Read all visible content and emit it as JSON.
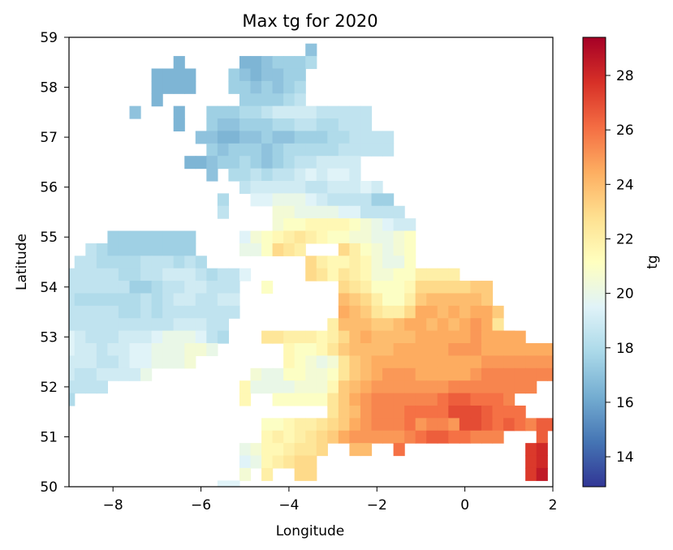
{
  "chart_data": {
    "type": "heatmap",
    "title": "Max tg for 2020",
    "xlabel": "Longitude",
    "ylabel": "Latitude",
    "xlim": [
      -9,
      2
    ],
    "ylim": [
      50,
      59
    ],
    "xticks": [
      -8,
      -6,
      -4,
      -2,
      0,
      2
    ],
    "xtick_labels": [
      "−8",
      "−6",
      "−4",
      "−2",
      "0",
      "2"
    ],
    "yticks": [
      50,
      51,
      52,
      53,
      54,
      55,
      56,
      57,
      58,
      59
    ],
    "ytick_labels": [
      "50",
      "51",
      "52",
      "53",
      "54",
      "55",
      "56",
      "57",
      "58",
      "59"
    ],
    "grid": false,
    "cell_size_deg": [
      0.25,
      0.25
    ],
    "colorbar": {
      "label": "tg",
      "colormap": "RdYlBu_r",
      "vmin": 12.9,
      "vmax": 29.4,
      "ticks": [
        14,
        16,
        18,
        20,
        22,
        24,
        26,
        28
      ],
      "tick_labels": [
        "14",
        "16",
        "18",
        "20",
        "22",
        "24",
        "26",
        "28"
      ],
      "stops": [
        "#313695",
        "#4575b4",
        "#74add1",
        "#abd9e9",
        "#e0f3f8",
        "#ffffbf",
        "#fee090",
        "#fdae61",
        "#f46d43",
        "#d73027",
        "#a50026"
      ]
    },
    "rows": [
      {
        "lat": 58.75,
        "lon_start": -3.5,
        "values": [
          17
        ]
      },
      {
        "lat": 58.5,
        "lon_start": -6.5,
        "values": [
          16.5
        ]
      },
      {
        "lat": 58.5,
        "lon_start": -5.0,
        "values": [
          16.5,
          16.5,
          17,
          17.5,
          17.5,
          17.5,
          18
        ]
      },
      {
        "lat": 58.25,
        "lon_start": -7.0,
        "values": [
          16.5,
          16.5,
          16.5,
          16.5
        ]
      },
      {
        "lat": 58.25,
        "lon_start": -5.25,
        "values": [
          17.5,
          17,
          16.5,
          17,
          17,
          17.5,
          17.5
        ]
      },
      {
        "lat": 58.0,
        "lon_start": -7.0,
        "values": [
          16.5,
          16.5,
          16.5,
          16.5
        ]
      },
      {
        "lat": 58.0,
        "lon_start": -5.25,
        "values": [
          17.5,
          17.5,
          17,
          17.5,
          17,
          17.5,
          18
        ]
      },
      {
        "lat": 57.75,
        "lon_start": -7.0,
        "values": [
          16.5
        ]
      },
      {
        "lat": 57.75,
        "lon_start": -5.0,
        "values": [
          17.5,
          17.5,
          17.5,
          17.5,
          18,
          18.5
        ]
      },
      {
        "lat": 57.5,
        "lon_start": -7.5,
        "values": [
          17
        ]
      },
      {
        "lat": 57.5,
        "lon_start": -6.5,
        "values": [
          16.5
        ]
      },
      {
        "lat": 57.5,
        "lon_start": -5.75,
        "values": [
          17.5,
          17.5,
          17.5,
          18,
          18,
          18.5,
          19,
          19,
          19,
          19,
          18.5,
          18.5,
          18.5,
          18.5,
          18.5
        ]
      },
      {
        "lat": 57.25,
        "lon_start": -6.5,
        "values": [
          16.5
        ]
      },
      {
        "lat": 57.25,
        "lon_start": -5.75,
        "values": [
          17.5,
          17,
          17,
          17.5,
          17.5,
          17.5,
          18,
          18,
          18.5,
          18.5,
          18,
          18,
          18.5,
          18.5,
          18.5
        ]
      },
      {
        "lat": 57.0,
        "lon_start": -6.0,
        "values": [
          17,
          17,
          16.5,
          16.5,
          17,
          17,
          17.5,
          17,
          17,
          17.5,
          17.5,
          17.5,
          18,
          18,
          18.5,
          18.5,
          18.5,
          18.5
        ]
      },
      {
        "lat": 56.75,
        "lon_start": -5.75,
        "values": [
          17.5,
          17,
          17.5,
          17.5,
          17.5,
          17,
          17.5,
          18,
          18,
          18,
          18,
          18,
          18.5,
          18.5,
          18.5,
          18.5,
          18.5
        ]
      },
      {
        "lat": 56.5,
        "lon_start": -6.25,
        "values": [
          16.5,
          16.5,
          17,
          17.5,
          17.5,
          18,
          17.5,
          17,
          17.5,
          18,
          18.5,
          18.5,
          19,
          19,
          19,
          19
        ]
      },
      {
        "lat": 56.25,
        "lon_start": -5.75,
        "values": [
          17
        ]
      },
      {
        "lat": 56.25,
        "lon_start": -5.25,
        "values": [
          18,
          18,
          18.5,
          18,
          18.5,
          18.5,
          19,
          19.5,
          19,
          19.5,
          19.5,
          19
        ]
      },
      {
        "lat": 56.0,
        "lon_start": -5.0,
        "values": [
          18.5,
          19,
          19,
          19,
          19,
          19,
          18.5,
          18.5,
          19,
          19,
          19,
          19.5,
          19
        ]
      },
      {
        "lat": 55.75,
        "lon_start": -5.5,
        "values": [
          18
        ]
      },
      {
        "lat": 55.75,
        "lon_start": -4.75,
        "values": [
          19.5,
          19.5,
          20,
          20,
          20,
          19.5,
          19,
          18.5,
          18.5,
          18.5,
          18.5,
          17.5,
          17.5
        ]
      },
      {
        "lat": 55.5,
        "lon_start": -5.5,
        "values": [
          18.5
        ]
      },
      {
        "lat": 55.5,
        "lon_start": -4.25,
        "values": [
          20.5,
          20.5,
          20,
          20,
          20,
          20,
          19.5,
          19.5,
          18.5,
          18.5,
          18.5,
          18.5
        ]
      },
      {
        "lat": 55.25,
        "lon_start": -4.25,
        "values": [
          20.5,
          21,
          21,
          21.5,
          21.5,
          21.5,
          21.5,
          21,
          20.5,
          20,
          19.5,
          19,
          19
        ]
      },
      {
        "lat": 55.0,
        "lon_start": -8.0,
        "values": [
          17.5,
          17.5,
          17.5,
          17.5,
          17.5,
          17.5,
          17.5,
          17.5
        ]
      },
      {
        "lat": 55.0,
        "lon_start": -5.0,
        "values": [
          19.5,
          20.5,
          21,
          21.5,
          22,
          22.5,
          22,
          21.5,
          21,
          21,
          20.5,
          20.5,
          20,
          20,
          20.5,
          21
        ]
      },
      {
        "lat": 54.75,
        "lon_start": -8.5,
        "values": [
          18.5,
          18,
          17.5,
          17.5,
          17.5,
          17.5,
          17.5,
          17.5,
          17.5,
          17.5
        ]
      },
      {
        "lat": 54.75,
        "lon_start": -5.0,
        "values": [
          20,
          20,
          21,
          23,
          22.5,
          22
        ]
      },
      {
        "lat": 54.75,
        "lon_start": -2.75,
        "values": [
          23,
          22,
          21,
          20.5,
          20,
          20.5,
          21
        ]
      },
      {
        "lat": 54.5,
        "lon_start": -8.75,
        "values": [
          18.5,
          18.5,
          18,
          18,
          18,
          18,
          18.5,
          18.5,
          18.5,
          18,
          18.5,
          18
        ]
      },
      {
        "lat": 54.5,
        "lon_start": -3.5,
        "values": [
          23,
          22,
          21.5,
          21.5,
          22,
          21.5,
          20.5,
          20,
          20,
          21
        ]
      },
      {
        "lat": 54.25,
        "lon_start": -9.0,
        "values": [
          18.5,
          18.5,
          18.5,
          18.5,
          18.5,
          18,
          18,
          18.5,
          18.5,
          19,
          19,
          19,
          18.5,
          18,
          18.5,
          18.5,
          19.5
        ]
      },
      {
        "lat": 54.25,
        "lon_start": -3.5,
        "values": [
          23,
          22.5,
          21.5,
          22.5,
          22,
          21.5,
          20.5,
          20.5,
          21,
          21,
          22,
          22,
          22,
          22
        ]
      },
      {
        "lat": 54.0,
        "lon_start": -9.0,
        "values": [
          18.5,
          18.5,
          18.5,
          18.5,
          18.5,
          18.5,
          17.5,
          17.5,
          18,
          18.5,
          18.5,
          19,
          19,
          18.5,
          18.5,
          18.5
        ]
      },
      {
        "lat": 54.0,
        "lon_start": -4.5,
        "values": [
          21
        ]
      },
      {
        "lat": 54.0,
        "lon_start": -2.75,
        "values": [
          23,
          22.5,
          22,
          21,
          21,
          21,
          21.5,
          23,
          23,
          23,
          23,
          23,
          23.5,
          23.5
        ]
      },
      {
        "lat": 53.75,
        "lon_start": -9.0,
        "values": [
          18.5,
          18,
          18,
          18,
          18,
          18,
          18,
          18.5,
          18,
          18.5,
          19,
          19,
          18.5,
          18.5,
          19,
          19
        ]
      },
      {
        "lat": 53.75,
        "lon_start": -2.75,
        "values": [
          24,
          23.5,
          23,
          22,
          21,
          21,
          22,
          23.5,
          24,
          24,
          24,
          24,
          24,
          23.5
        ]
      },
      {
        "lat": 53.5,
        "lon_start": -9.0,
        "values": [
          18.5,
          18.5,
          18.5,
          18.5,
          18.5,
          18,
          18,
          18.5,
          18,
          18.5,
          18.5,
          18.5,
          18.5,
          18.5,
          18.5,
          18.5
        ]
      },
      {
        "lat": 53.5,
        "lon_start": -2.75,
        "values": [
          24.5,
          24,
          23.5,
          22.5,
          22,
          22,
          23,
          24.5,
          24.5,
          24,
          24.5,
          24,
          24.5,
          24.5,
          23.5
        ]
      },
      {
        "lat": 53.25,
        "lon_start": -9.0,
        "values": [
          18.5,
          18.5,
          18.5,
          18.5,
          18.5,
          18.5,
          18.5,
          18.5,
          18.5,
          18.5,
          19,
          19,
          19,
          18.5,
          18.5
        ]
      },
      {
        "lat": 53.25,
        "lon_start": -3.0,
        "values": [
          22,
          24,
          24,
          24,
          23.5,
          23.5,
          24,
          24.5,
          24.5,
          24,
          24.5,
          24,
          24.5,
          25,
          24.5,
          22.5
        ]
      },
      {
        "lat": 53.0,
        "lon_start": -9.0,
        "values": [
          19.5,
          19,
          18.5,
          18.5,
          18.5,
          19,
          19,
          19,
          19.5,
          20,
          20,
          20,
          19.5,
          18.5,
          18
        ]
      },
      {
        "lat": 53.0,
        "lon_start": -4.5,
        "values": [
          22.5,
          22.5,
          22,
          22,
          22,
          21.5,
          22,
          23,
          24,
          24.5,
          24,
          24,
          24,
          24,
          24.5,
          24.5,
          24.5,
          24.5,
          24.5,
          25,
          24.5,
          24.5,
          24
        ]
      },
      {
        "lat": 53.0,
        "lon_start": 0.75,
        "values": [
          24.5,
          24.5,
          24.5
        ]
      },
      {
        "lat": 52.75,
        "lon_start": -9.0,
        "values": [
          19.5,
          19,
          19,
          18.5,
          19,
          19,
          19.5,
          19.5,
          20,
          20,
          20,
          20.5,
          20.5,
          20
        ]
      },
      {
        "lat": 52.75,
        "lon_start": -4.0,
        "values": [
          21.5,
          21,
          21,
          21.5,
          22.5,
          23.5,
          24,
          24,
          24,
          24,
          24.5,
          24.5,
          24.5,
          24.5,
          24.5,
          25,
          25,
          25,
          24.5,
          24.5,
          24.5,
          24.5,
          24.5,
          24.5,
          24.5,
          24
        ]
      },
      {
        "lat": 52.5,
        "lon_start": -9.0,
        "values": [
          19,
          19,
          19,
          18.5,
          18.5,
          19,
          19.5,
          19.5,
          20,
          20,
          20,
          20.5
        ]
      },
      {
        "lat": 52.5,
        "lon_start": -4.0,
        "values": [
          21.5,
          21,
          20.5,
          20,
          20.5,
          22.5,
          23.5,
          24,
          24.5,
          24.5,
          24.5,
          24.5,
          24.5,
          24.5,
          24.5,
          24.5,
          24.5,
          24.5,
          25,
          25,
          25,
          25,
          25,
          25,
          25,
          24.5,
          24.5
        ]
      },
      {
        "lat": 52.25,
        "lon_start": -9.0,
        "values": [
          19,
          18.5,
          18.5,
          19,
          19,
          19,
          19,
          20
        ]
      },
      {
        "lat": 52.25,
        "lon_start": -4.75,
        "values": [
          20.5,
          20,
          20,
          21,
          21,
          20.5,
          20.5,
          21,
          22.5,
          23.5,
          24,
          24.5,
          25,
          25,
          25,
          24.5,
          24.5,
          24.5,
          24.5,
          24.5,
          25,
          25.5,
          25.5,
          25.5,
          25.5,
          25.5,
          25.5,
          25.5,
          25.5
        ]
      },
      {
        "lat": 52.0,
        "lon_start": -9.0,
        "values": [
          18.5,
          18.5,
          18.5,
          18.5
        ]
      },
      {
        "lat": 52.0,
        "lon_start": -5.0,
        "values": [
          21.5,
          20,
          20,
          20,
          20,
          20.5,
          20.5,
          20.5,
          21.5,
          23.5,
          24,
          24.5,
          25,
          25,
          25,
          25,
          25,
          25,
          25,
          25.5,
          25.5,
          25.5,
          25.5,
          25.5,
          25.5,
          25.5,
          25.5
        ]
      },
      {
        "lat": 51.75,
        "lon_start": -9.0,
        "values": [
          18
        ]
      },
      {
        "lat": 51.75,
        "lon_start": -5.0,
        "values": [
          21.5
        ]
      },
      {
        "lat": 51.75,
        "lon_start": -4.25,
        "values": [
          21,
          21,
          21,
          21,
          21,
          22.5,
          23.5,
          24.5,
          25,
          25.5,
          25.5,
          25.5,
          25.5,
          25.5,
          25.5,
          26,
          26.5,
          26.5,
          26,
          26,
          26,
          25.5
        ]
      },
      {
        "lat": 51.5,
        "lon_start": -3.0,
        "values": [
          22.5,
          23.5,
          24,
          25,
          25.5,
          25.5,
          25.5,
          26,
          26,
          26,
          26,
          27,
          27,
          27,
          26.5,
          26,
          26,
          26
        ]
      },
      {
        "lat": 51.25,
        "lon_start": -4.5,
        "values": [
          21,
          21,
          21.5,
          22,
          22,
          22.5,
          23,
          23.5,
          24.5,
          25,
          25.5,
          25.5,
          25.5,
          26,
          25,
          25.5,
          25.5,
          25,
          27,
          27,
          26.5,
          26,
          26.5,
          26,
          25.5,
          26.5,
          26.5,
          26
        ]
      },
      {
        "lat": 51.0,
        "lon_start": -4.5,
        "values": [
          21.5,
          22,
          21.5,
          22,
          22.5,
          23,
          23.5,
          24.5,
          25,
          25,
          25,
          25,
          25,
          25.5,
          26,
          26.5,
          26.5,
          26,
          26,
          25.5,
          25.5,
          25.5
        ]
      },
      {
        "lat": 51.0,
        "lon_start": 1.75,
        "values": [
          26.5
        ]
      },
      {
        "lat": 50.75,
        "lon_start": -5.0,
        "values": [
          20,
          20.5,
          21.5,
          21.5,
          22,
          22.5,
          22.5,
          23
        ]
      },
      {
        "lat": 50.75,
        "lon_start": -2.5,
        "values": [
          24,
          24
        ]
      },
      {
        "lat": 50.75,
        "lon_start": -1.5,
        "values": [
          26
        ]
      },
      {
        "lat": 50.75,
        "lon_start": 1.5,
        "values": [
          27.5,
          28
        ]
      },
      {
        "lat": 50.5,
        "lon_start": -5.0,
        "values": [
          19.5,
          20,
          21.5,
          22,
          22.5,
          23,
          23
        ]
      },
      {
        "lat": 50.5,
        "lon_start": 1.5,
        "values": [
          27.5,
          28
        ]
      },
      {
        "lat": 50.25,
        "lon_start": -5.0,
        "values": [
          20.5
        ]
      },
      {
        "lat": 50.25,
        "lon_start": -4.5,
        "values": [
          22
        ]
      },
      {
        "lat": 50.25,
        "lon_start": -3.75,
        "values": [
          23,
          23
        ]
      },
      {
        "lat": 50.25,
        "lon_start": 1.5,
        "values": [
          27.5,
          28.5
        ]
      },
      {
        "lat": 50.0,
        "lon_start": -5.5,
        "values": [
          19.5,
          19.5
        ]
      }
    ]
  }
}
